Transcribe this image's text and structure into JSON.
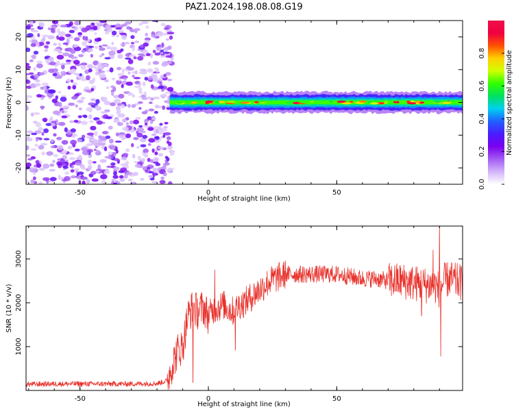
{
  "figure_title": "PAZ1.2024.198.08.08.G19",
  "colors": {
    "snr_line": "#e8302a",
    "axis": "#000000",
    "colormap": [
      "#ffffff",
      "#d2b4fa",
      "#a35cf2",
      "#7a00f0",
      "#4a1cff",
      "#2060ff",
      "#00d0f0",
      "#00e060",
      "#30ff00",
      "#d0ff00",
      "#ffd000",
      "#ff5000",
      "#f00040",
      "#f0104a"
    ]
  },
  "chart_data": [
    {
      "type": "heatmap",
      "title": "",
      "xlabel": "Height of straight line (km)",
      "ylabel": "Frequency (Hz)",
      "xlim": [
        -71,
        99
      ],
      "ylim": [
        -25,
        25
      ],
      "x_ticks": [
        -50,
        0,
        50
      ],
      "x_tick_labels": [
        "-50",
        "0",
        "50"
      ],
      "y_ticks": [
        -20,
        -10,
        0,
        10,
        20
      ],
      "y_tick_labels": [
        "-20",
        "-10",
        "0",
        "10",
        "20"
      ],
      "noise_region_x": [
        -71,
        -15
      ],
      "noise_amplitude_range": [
        0.05,
        0.3
      ],
      "signal_frequency_hz": 0,
      "signal_start_x": -15,
      "signal_band_halfwidth_hz": 2,
      "signal_peak_amplitude_range": [
        0.55,
        0.95
      ],
      "grid": false,
      "colorbar": {
        "label": "Normalized spectral amplitude",
        "range": [
          0.0,
          1.0
        ],
        "ticks": [
          0.0,
          0.2,
          0.4,
          0.6,
          0.8
        ],
        "tick_labels": [
          "0.0",
          "0.2",
          "0.4",
          "0.6",
          "0.8"
        ],
        "colormap": "rainbow"
      }
    },
    {
      "type": "line",
      "title": "",
      "xlabel": "Height of straight line (km)",
      "ylabel": "SNR (10 * v/v)",
      "xlim": [
        -71,
        99
      ],
      "ylim": [
        0,
        3750
      ],
      "x_ticks": [
        -50,
        0,
        50
      ],
      "x_tick_labels": [
        "-50",
        "0",
        "50"
      ],
      "y_ticks": [
        1000,
        2000,
        3000
      ],
      "y_tick_labels": [
        "1000",
        "2000",
        "3000"
      ],
      "grid": false,
      "series": [
        {
          "x": [
            -71,
            -60,
            -50,
            -40,
            -30,
            -20,
            -16,
            -14,
            -12,
            -10,
            -8,
            -6,
            -4,
            -2,
            0,
            2,
            4,
            6,
            8,
            10,
            12,
            14,
            16,
            18,
            20,
            22,
            24,
            26,
            28,
            30,
            35,
            40,
            45,
            50,
            55,
            60,
            65,
            70,
            75,
            80,
            85,
            88,
            90,
            92,
            94,
            96,
            99
          ],
          "y": [
            140,
            150,
            150,
            150,
            150,
            160,
            220,
            600,
            900,
            1000,
            1700,
            1900,
            1800,
            1900,
            1700,
            1850,
            1900,
            1950,
            1850,
            1800,
            1950,
            2000,
            2100,
            2200,
            2300,
            2400,
            2500,
            2550,
            2600,
            2650,
            2650,
            2650,
            2650,
            2650,
            2600,
            2550,
            2550,
            2500,
            2500,
            2450,
            2400,
            2400,
            2300,
            2500,
            2550,
            2500,
            2450
          ]
        }
      ],
      "spikes": [
        {
          "x": 90.0,
          "y": 3750
        },
        {
          "x": 90.5,
          "y": 780
        },
        {
          "x": 87.5,
          "y": 3200
        },
        {
          "x": 83.0,
          "y": 1700
        },
        {
          "x": 10.5,
          "y": 920
        },
        {
          "x": -6.0,
          "y": 180
        },
        {
          "x": 2.5,
          "y": 2750
        }
      ]
    }
  ]
}
